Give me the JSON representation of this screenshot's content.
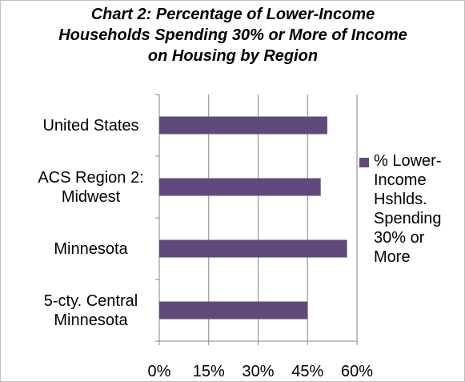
{
  "chart_data": {
    "type": "bar",
    "orientation": "horizontal",
    "title": "Chart 2: Percentage of Lower-Income Households Spending 30% or More of Income on Housing by Region",
    "categories": [
      "United States",
      "ACS Region 2: Midwest",
      "Minnesota",
      "5-cty. Central Minnesota"
    ],
    "series": [
      {
        "name": "% Lower-Income Hshlds. Spending 30% or More",
        "color": "#604a7b",
        "values": [
          51,
          49,
          57,
          45
        ]
      }
    ],
    "xlim": [
      0,
      60
    ],
    "xticks": [
      {
        "value": 0,
        "label": "0%"
      },
      {
        "value": 15,
        "label": "15%"
      },
      {
        "value": 30,
        "label": "30%"
      },
      {
        "value": 45,
        "label": "45%"
      },
      {
        "value": 60,
        "label": "60%"
      }
    ],
    "grid": true,
    "legend": "right"
  }
}
